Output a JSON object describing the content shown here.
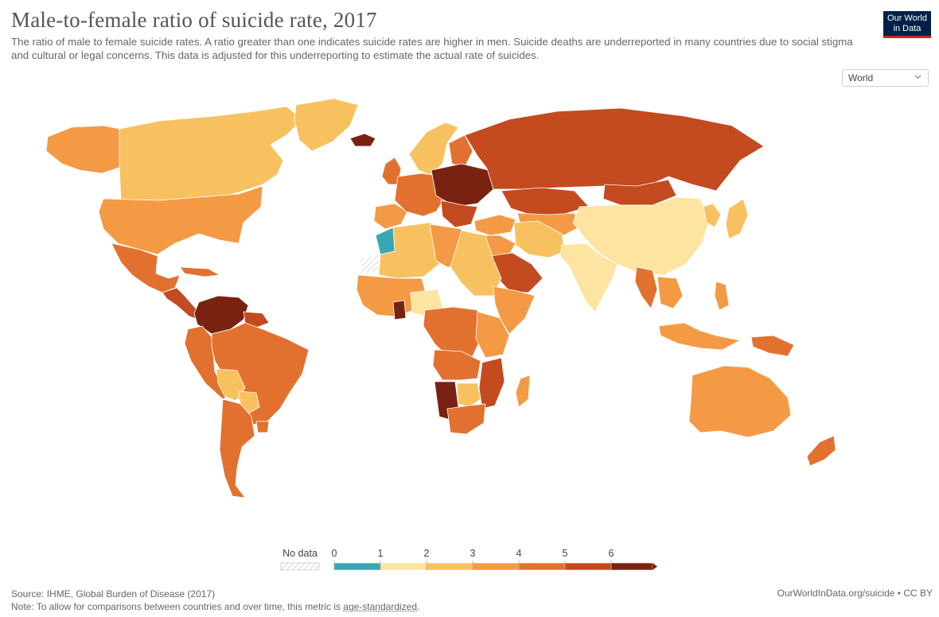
{
  "header": {
    "title": "Male-to-female ratio of suicide rate, 2017",
    "subtitle": "The ratio of male to female suicide rates. A ratio greater than one indicates suicide rates are higher in men. Suicide deaths are underreported in many countries due to social stigma and cultural or legal concerns. This data is adjusted for this underreporting to estimate the actual rate of suicides."
  },
  "logo": {
    "line1": "Our World",
    "line2": "in Data"
  },
  "region_selector": {
    "value": "World"
  },
  "legend": {
    "no_data_label": "No data",
    "ticks": [
      "0",
      "1",
      "2",
      "3",
      "4",
      "5",
      "6"
    ],
    "colors": [
      "#3aa6b4",
      "#fde4a0",
      "#f8c160",
      "#f49a45",
      "#e2712f",
      "#c44a1f",
      "#7a2212"
    ]
  },
  "footer": {
    "source": "Source: IHME, Global Burden of Disease (2017)",
    "note_prefix": "Note: To allow for comparisons between countries and over time, this metric is ",
    "note_link": "age-standardized",
    "note_suffix": ".",
    "credit": "OurWorldInData.org/suicide • CC BY"
  },
  "regions": [
    {
      "name": "canada",
      "color": "#f8c160"
    },
    {
      "name": "alaska",
      "color": "#f49a45"
    },
    {
      "name": "greenland",
      "color": "#f8c160"
    },
    {
      "name": "usa",
      "color": "#f49a45"
    },
    {
      "name": "mexico",
      "color": "#e2712f"
    },
    {
      "name": "central-america",
      "color": "#c44a1f"
    },
    {
      "name": "cuba",
      "color": "#e2712f"
    },
    {
      "name": "colombia-venezuela",
      "color": "#7a2212"
    },
    {
      "name": "guianas",
      "color": "#c44a1f"
    },
    {
      "name": "ecuador-peru",
      "color": "#e2712f"
    },
    {
      "name": "brazil",
      "color": "#e2712f"
    },
    {
      "name": "bolivia",
      "color": "#f8c160"
    },
    {
      "name": "paraguay",
      "color": "#f8c160"
    },
    {
      "name": "argentina-chile",
      "color": "#e2712f"
    },
    {
      "name": "uruguay",
      "color": "#e2712f"
    },
    {
      "name": "iceland",
      "color": "#7a2212"
    },
    {
      "name": "uk-ireland",
      "color": "#e2712f"
    },
    {
      "name": "scandinavia",
      "color": "#f8c160"
    },
    {
      "name": "finland",
      "color": "#e2712f"
    },
    {
      "name": "western-europe",
      "color": "#e2712f"
    },
    {
      "name": "iberia",
      "color": "#f49a45"
    },
    {
      "name": "eastern-europe",
      "color": "#7a2212"
    },
    {
      "name": "balkans",
      "color": "#c44a1f"
    },
    {
      "name": "turkey",
      "color": "#f49a45"
    },
    {
      "name": "russia",
      "color": "#c44a1f"
    },
    {
      "name": "kazakhstan",
      "color": "#c44a1f"
    },
    {
      "name": "mongolia",
      "color": "#c44a1f"
    },
    {
      "name": "central-asia",
      "color": "#f49a45"
    },
    {
      "name": "china",
      "color": "#fde4a0"
    },
    {
      "name": "korea-japan",
      "color": "#f8c160"
    },
    {
      "name": "middle-east",
      "color": "#f49a45"
    },
    {
      "name": "saudi-arabia",
      "color": "#c44a1f"
    },
    {
      "name": "iran-afghanistan",
      "color": "#f8c160"
    },
    {
      "name": "india",
      "color": "#fde4a0"
    },
    {
      "name": "southeast-asia",
      "color": "#e2712f"
    },
    {
      "name": "indochina",
      "color": "#f49a45"
    },
    {
      "name": "indonesia",
      "color": "#f49a45"
    },
    {
      "name": "papua",
      "color": "#e2712f"
    },
    {
      "name": "philippines",
      "color": "#f49a45"
    },
    {
      "name": "morocco",
      "color": "#3aa6b4"
    },
    {
      "name": "north-africa",
      "color": "#f8c160"
    },
    {
      "name": "libya",
      "color": "#f49a45"
    },
    {
      "name": "egypt-sudan",
      "color": "#f8c160"
    },
    {
      "name": "west-africa",
      "color": "#f49a45"
    },
    {
      "name": "nigeria",
      "color": "#fde4a0"
    },
    {
      "name": "ghana",
      "color": "#7a2212"
    },
    {
      "name": "horn-of-africa",
      "color": "#f49a45"
    },
    {
      "name": "central-africa",
      "color": "#e2712f"
    },
    {
      "name": "east-africa",
      "color": "#f49a45"
    },
    {
      "name": "angola-zambia",
      "color": "#e2712f"
    },
    {
      "name": "mozambique",
      "color": "#c44a1f"
    },
    {
      "name": "namibia",
      "color": "#7a2212"
    },
    {
      "name": "botswana",
      "color": "#f8c160"
    },
    {
      "name": "south-africa",
      "color": "#e2712f"
    },
    {
      "name": "madagascar",
      "color": "#f49a45"
    },
    {
      "name": "australia",
      "color": "#f49a45"
    },
    {
      "name": "new-zealand",
      "color": "#e2712f"
    },
    {
      "name": "western-sahara",
      "color": "no-data"
    }
  ]
}
